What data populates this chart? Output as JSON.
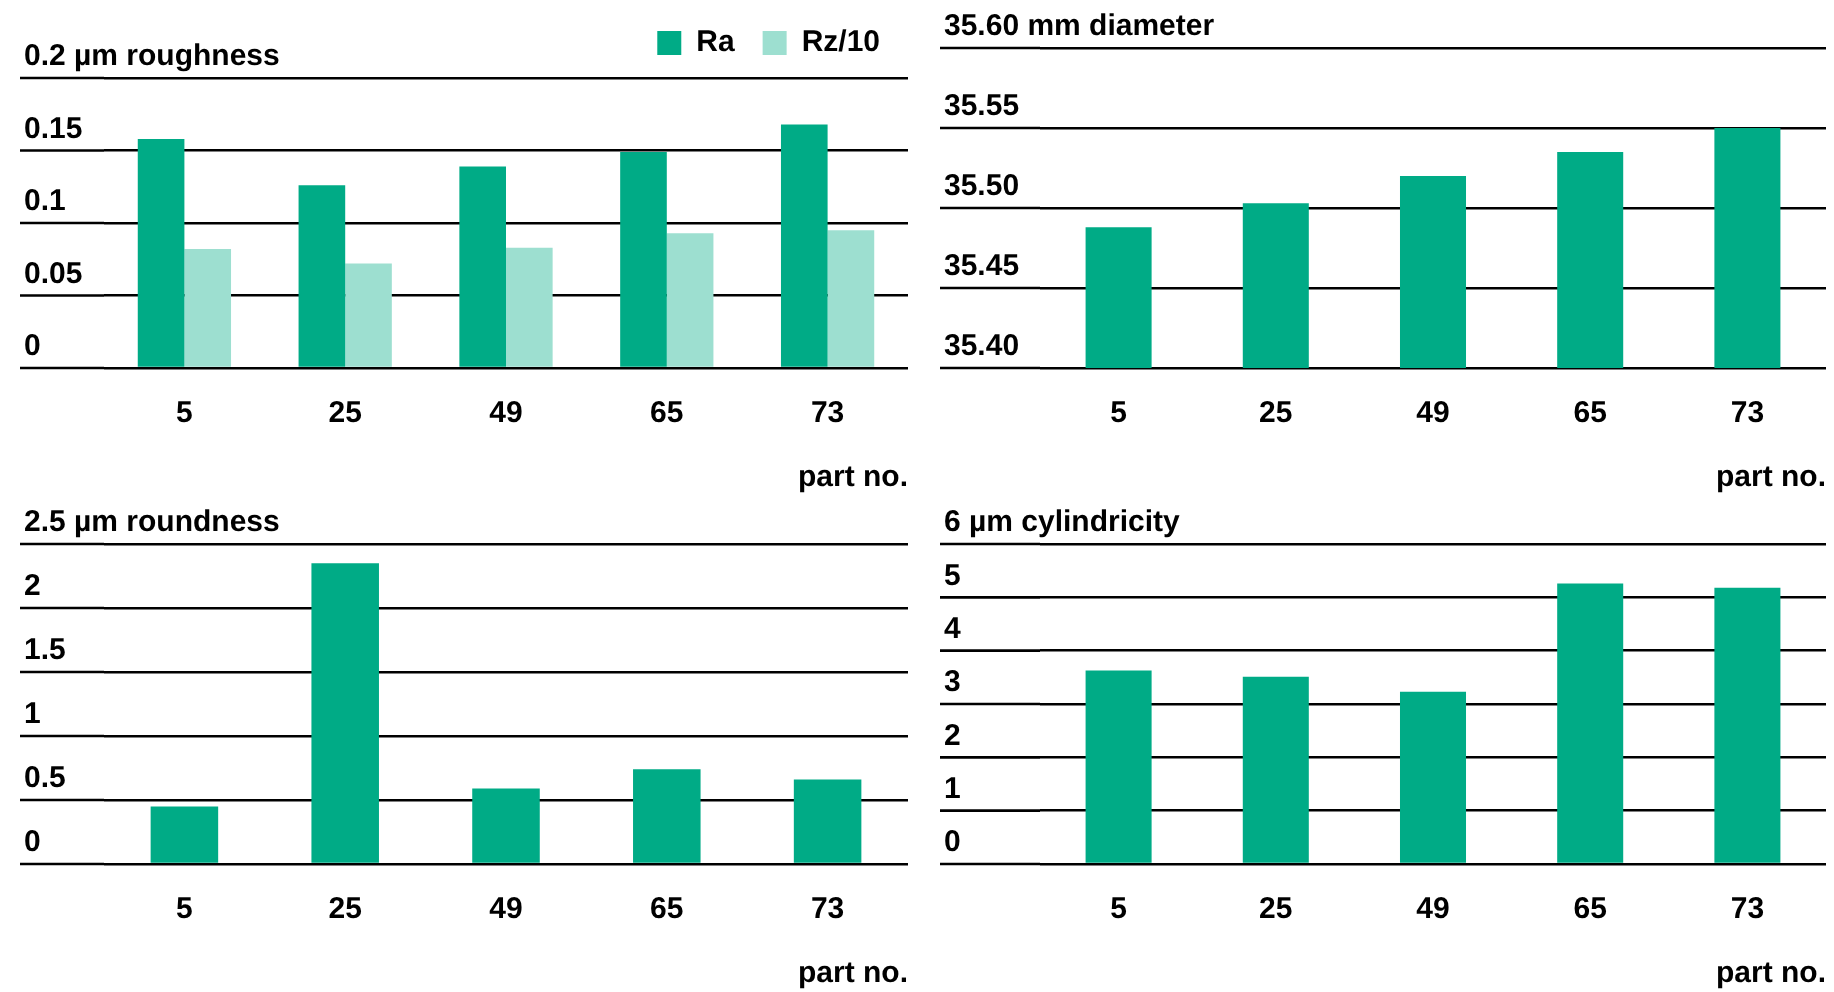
{
  "chart_data": [
    {
      "type": "bar",
      "categories": [
        "5",
        "25",
        "49",
        "65",
        "73"
      ],
      "xlabel": "part no.",
      "series": [
        {
          "name": "Ra",
          "color": "#00ab86",
          "values": [
            0.158,
            0.126,
            0.139,
            0.149,
            0.168
          ]
        },
        {
          "name": "Rz/10",
          "color": "#9ddfd0",
          "values": [
            0.082,
            0.072,
            0.083,
            0.093,
            0.095
          ]
        }
      ],
      "ylim": [
        0,
        0.2
      ],
      "yticks": [
        0,
        0.05,
        0.1,
        0.15,
        {
          "value": 0.2,
          "label": "0.2 µm roughness"
        }
      ],
      "grid": "y",
      "legend": "top right"
    },
    {
      "type": "bar",
      "categories": [
        "5",
        "25",
        "49",
        "65",
        "73"
      ],
      "xlabel": "part no.",
      "color": "#00ab86",
      "values": [
        35.488,
        35.503,
        35.52,
        35.535,
        35.55
      ],
      "ylim": [
        35.4,
        35.6
      ],
      "yticks": [
        {
          "value": 35.4,
          "label": "35.40"
        },
        35.45,
        {
          "value": 35.5,
          "label": "35.50"
        },
        35.55,
        {
          "value": 35.6,
          "label": "35.60 mm diameter"
        }
      ],
      "grid": "y"
    },
    {
      "type": "bar",
      "categories": [
        "5",
        "25",
        "49",
        "65",
        "73"
      ],
      "xlabel": "part no.",
      "color": "#00ab86",
      "values": [
        0.45,
        2.35,
        0.59,
        0.74,
        0.66
      ],
      "ylim": [
        0,
        2.5
      ],
      "yticks": [
        0,
        0.5,
        1,
        1.5,
        2,
        {
          "value": 2.5,
          "label": "2.5 µm roundness"
        }
      ],
      "grid": "y"
    },
    {
      "type": "bar",
      "categories": [
        "5",
        "25",
        "49",
        "65",
        "73"
      ],
      "xlabel": "part no.",
      "color": "#00ab86",
      "values": [
        3.63,
        3.51,
        3.23,
        5.26,
        5.18
      ],
      "ylim": [
        0,
        6
      ],
      "yticks": [
        0,
        1,
        2,
        3,
        4,
        5,
        {
          "value": 6,
          "label": "6 µm cylindricity"
        }
      ],
      "grid": "y"
    }
  ]
}
